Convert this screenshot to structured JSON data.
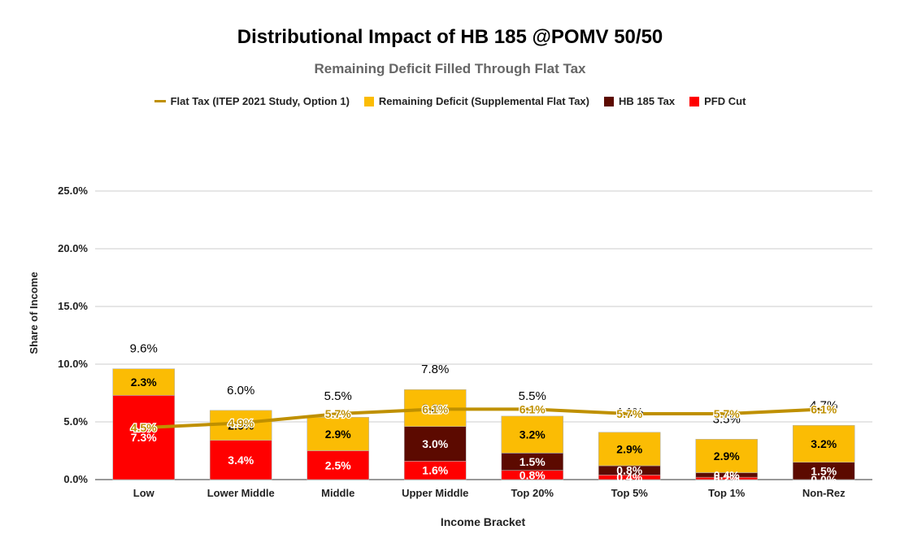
{
  "chart_data": {
    "type": "bar",
    "title": "Distributional Impact of HB 185 @POMV 50/50",
    "subtitle": "Remaining Deficit Filled Through Flat Tax",
    "xlabel": "Income Bracket",
    "ylabel": "Share of Income",
    "ylim": [
      0,
      25
    ],
    "yticks": [
      "0.0%",
      "5.0%",
      "10.0%",
      "15.0%",
      "20.0%",
      "25.0%"
    ],
    "grid": true,
    "legend_position": "top",
    "categories": [
      "Low",
      "Lower Middle",
      "Middle",
      "Upper Middle",
      "Top 20%",
      "Top 5%",
      "Top 1%",
      "Non-Rez"
    ],
    "stacked_series": [
      {
        "name": "PFD Cut",
        "color": "#ff0000",
        "values": [
          7.3,
          3.4,
          2.5,
          1.6,
          0.8,
          0.4,
          0.2,
          0.0
        ],
        "labels": [
          "7.3%",
          "3.4%",
          "2.5%",
          "1.6%",
          "0.8%",
          "0.4%",
          "0.2%",
          "0.0%"
        ]
      },
      {
        "name": "HB 185 Tax",
        "color": "#5c0a00",
        "values": [
          0.0,
          0.0,
          0.0,
          3.0,
          1.5,
          0.8,
          0.4,
          1.5
        ],
        "labels": [
          "",
          "",
          "",
          "3.0%",
          "1.5%",
          "0.8%",
          "0.4%",
          "1.5%"
        ]
      },
      {
        "name": "Remaining Deficit (Supplemental Flat Tax)",
        "color": "#fbbc04",
        "values": [
          2.3,
          2.6,
          2.9,
          3.2,
          3.2,
          2.9,
          2.9,
          3.2
        ],
        "labels": [
          "2.3%",
          "2.6%",
          "2.9%",
          "3.2%",
          "3.2%",
          "2.9%",
          "2.9%",
          "3.2%"
        ]
      }
    ],
    "totals": [
      9.6,
      6.0,
      5.5,
      7.8,
      5.5,
      4.1,
      3.5,
      4.7
    ],
    "total_labels": [
      "9.6%",
      "6.0%",
      "5.5%",
      "7.8%",
      "5.5%",
      "4.1%",
      "3.5%",
      "4.7%"
    ],
    "line_series": {
      "name": "Flat Tax (ITEP 2021 Study, Option 1)",
      "color": "#bf9000",
      "values": [
        4.5,
        4.9,
        5.7,
        6.1,
        6.1,
        5.7,
        5.7,
        6.1
      ],
      "labels": [
        "4.5%",
        "4.9%",
        "5.7%",
        "6.1%",
        "6.1%",
        "5.7%",
        "5.7%",
        "6.1%"
      ]
    },
    "legend": [
      {
        "label": "Flat Tax (ITEP 2021 Study, Option 1)",
        "kind": "line",
        "color": "#bf9000"
      },
      {
        "label": "Remaining Deficit (Supplemental Flat Tax)",
        "kind": "box",
        "color": "#fbbc04"
      },
      {
        "label": "HB 185 Tax",
        "kind": "box",
        "color": "#5c0a00"
      },
      {
        "label": "PFD Cut",
        "kind": "box",
        "color": "#ff0000"
      }
    ]
  }
}
